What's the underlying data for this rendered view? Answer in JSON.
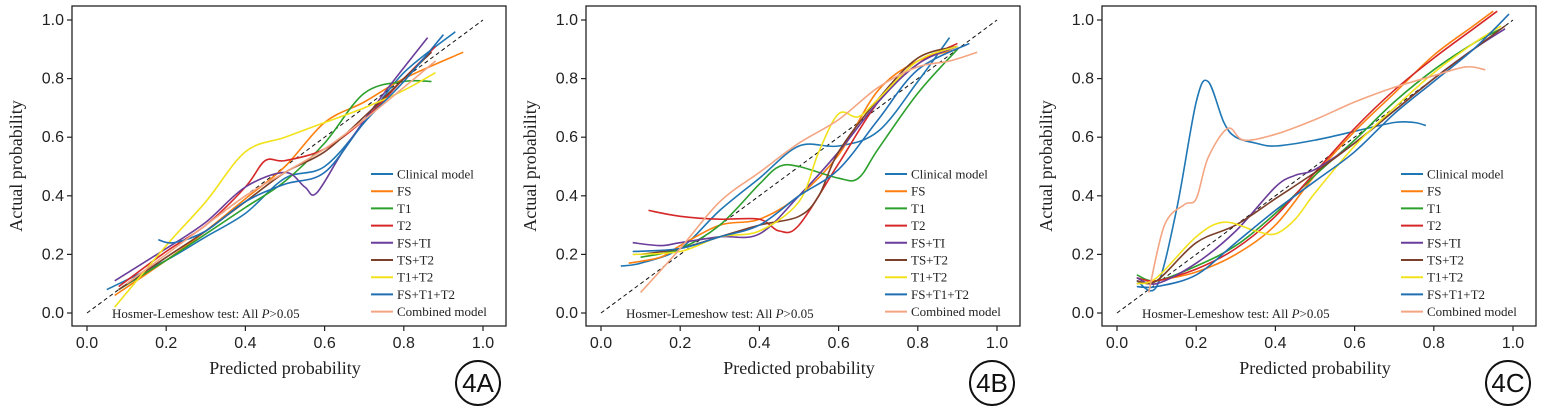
{
  "colors": {
    "Clinical model": "#1f77b4",
    "FS": "#ff7f0e",
    "T1": "#2ca02c",
    "T2": "#d62728",
    "FS+TI": "#6a3d9a",
    "TS+T2": "#7b3f2a",
    "T1+T2": "#f2e21b",
    "FS+T1+T2": "#1f6fb4",
    "Combined model": "#f4a582"
  },
  "chart_data": [
    {
      "type": "line",
      "panel_label": "4A",
      "xlabel": "Predicted probability",
      "ylabel": "Actual probability",
      "xlim": [
        0,
        1
      ],
      "ylim": [
        0,
        1
      ],
      "xticks": [
        "0.0",
        "0.2",
        "0.4",
        "0.6",
        "0.8",
        "1.0"
      ],
      "yticks": [
        "0.0",
        "0.2",
        "0.4",
        "0.6",
        "0.8",
        "1.0"
      ],
      "annotation": {
        "prefix": "Hosmer-Lemeshow test: All ",
        "italic": "P",
        "suffix": ">0.05"
      },
      "legend_placement": "bottom-right",
      "series": [
        {
          "name": "Clinical model",
          "x": [
            0.05,
            0.2,
            0.3,
            0.4,
            0.5,
            0.6,
            0.7,
            0.8,
            0.93
          ],
          "y": [
            0.08,
            0.18,
            0.26,
            0.34,
            0.46,
            0.5,
            0.65,
            0.82,
            0.96
          ]
        },
        {
          "name": "FS",
          "x": [
            0.07,
            0.2,
            0.3,
            0.4,
            0.5,
            0.6,
            0.7,
            0.8,
            0.95
          ],
          "y": [
            0.06,
            0.18,
            0.28,
            0.39,
            0.5,
            0.65,
            0.72,
            0.8,
            0.89
          ]
        },
        {
          "name": "T1",
          "x": [
            0.08,
            0.2,
            0.3,
            0.4,
            0.5,
            0.6,
            0.7,
            0.8,
            0.87
          ],
          "y": [
            0.08,
            0.18,
            0.27,
            0.36,
            0.45,
            0.58,
            0.75,
            0.79,
            0.79
          ]
        },
        {
          "name": "T2",
          "x": [
            0.08,
            0.2,
            0.3,
            0.4,
            0.45,
            0.5,
            0.6,
            0.7,
            0.8,
            0.88
          ],
          "y": [
            0.09,
            0.21,
            0.3,
            0.43,
            0.52,
            0.52,
            0.56,
            0.66,
            0.8,
            0.91
          ]
        },
        {
          "name": "FS+TI",
          "x": [
            0.07,
            0.2,
            0.3,
            0.4,
            0.5,
            0.55,
            0.58,
            0.65,
            0.75,
            0.86
          ],
          "y": [
            0.11,
            0.22,
            0.31,
            0.43,
            0.48,
            0.43,
            0.41,
            0.56,
            0.75,
            0.94
          ]
        },
        {
          "name": "TS+T2",
          "x": [
            0.08,
            0.2,
            0.3,
            0.4,
            0.5,
            0.6,
            0.7,
            0.8,
            0.87
          ],
          "y": [
            0.08,
            0.19,
            0.28,
            0.38,
            0.48,
            0.55,
            0.67,
            0.8,
            0.89
          ]
        },
        {
          "name": "T1+T2",
          "x": [
            0.07,
            0.2,
            0.3,
            0.4,
            0.5,
            0.6,
            0.7,
            0.8,
            0.88
          ],
          "y": [
            0.02,
            0.23,
            0.38,
            0.55,
            0.6,
            0.65,
            0.7,
            0.76,
            0.82
          ]
        },
        {
          "name": "FS+T1+T2",
          "x": [
            0.18,
            0.22,
            0.3,
            0.4,
            0.5,
            0.6,
            0.7,
            0.8,
            0.9
          ],
          "y": [
            0.25,
            0.24,
            0.28,
            0.38,
            0.44,
            0.48,
            0.65,
            0.79,
            0.95
          ]
        },
        {
          "name": "Combined model",
          "x": [
            0.1,
            0.2,
            0.3,
            0.4,
            0.5,
            0.6,
            0.7,
            0.8,
            0.88
          ],
          "y": [
            0.1,
            0.2,
            0.3,
            0.4,
            0.48,
            0.56,
            0.66,
            0.77,
            0.86
          ]
        }
      ]
    },
    {
      "type": "line",
      "panel_label": "4B",
      "xlabel": "Predicted probability",
      "ylabel": "Actual probability",
      "xlim": [
        0,
        1
      ],
      "ylim": [
        0,
        1
      ],
      "xticks": [
        "0.0",
        "0.2",
        "0.4",
        "0.6",
        "0.8",
        "1.0"
      ],
      "yticks": [
        "0.0",
        "0.2",
        "0.4",
        "0.6",
        "0.8",
        "1.0"
      ],
      "annotation": {
        "prefix": "Hosmer-Lemeshow test: All ",
        "italic": "P",
        "suffix": ">0.05"
      },
      "legend_placement": "bottom-right",
      "series": [
        {
          "name": "Clinical model",
          "x": [
            0.05,
            0.1,
            0.2,
            0.3,
            0.4,
            0.5,
            0.6,
            0.7,
            0.8,
            0.88
          ],
          "y": [
            0.16,
            0.17,
            0.22,
            0.35,
            0.46,
            0.57,
            0.57,
            0.62,
            0.79,
            0.94
          ]
        },
        {
          "name": "FS",
          "x": [
            0.07,
            0.15,
            0.2,
            0.3,
            0.4,
            0.5,
            0.6,
            0.7,
            0.8,
            0.9
          ],
          "y": [
            0.17,
            0.19,
            0.23,
            0.3,
            0.32,
            0.4,
            0.54,
            0.76,
            0.86,
            0.9
          ]
        },
        {
          "name": "T1",
          "x": [
            0.1,
            0.2,
            0.3,
            0.4,
            0.45,
            0.5,
            0.6,
            0.65,
            0.7,
            0.8,
            0.9
          ],
          "y": [
            0.19,
            0.22,
            0.3,
            0.44,
            0.5,
            0.5,
            0.46,
            0.46,
            0.56,
            0.75,
            0.9
          ]
        },
        {
          "name": "T2",
          "x": [
            0.12,
            0.2,
            0.3,
            0.4,
            0.45,
            0.5,
            0.6,
            0.7,
            0.8,
            0.9
          ],
          "y": [
            0.35,
            0.33,
            0.32,
            0.32,
            0.28,
            0.3,
            0.51,
            0.72,
            0.85,
            0.92
          ]
        },
        {
          "name": "FS+TI",
          "x": [
            0.08,
            0.15,
            0.2,
            0.3,
            0.4,
            0.5,
            0.6,
            0.7,
            0.8,
            0.9
          ],
          "y": [
            0.24,
            0.23,
            0.24,
            0.26,
            0.27,
            0.4,
            0.55,
            0.72,
            0.85,
            0.91
          ]
        },
        {
          "name": "TS+T2",
          "x": [
            0.1,
            0.2,
            0.3,
            0.4,
            0.5,
            0.55,
            0.6,
            0.7,
            0.8,
            0.9
          ],
          "y": [
            0.2,
            0.22,
            0.26,
            0.3,
            0.33,
            0.4,
            0.55,
            0.73,
            0.87,
            0.91
          ]
        },
        {
          "name": "T1+T2",
          "x": [
            0.08,
            0.2,
            0.3,
            0.4,
            0.5,
            0.55,
            0.6,
            0.65,
            0.7,
            0.8,
            0.9
          ],
          "y": [
            0.2,
            0.21,
            0.26,
            0.28,
            0.38,
            0.55,
            0.68,
            0.67,
            0.73,
            0.86,
            0.91
          ]
        },
        {
          "name": "FS+T1+T2",
          "x": [
            0.08,
            0.2,
            0.3,
            0.4,
            0.5,
            0.6,
            0.7,
            0.8,
            0.93
          ],
          "y": [
            0.21,
            0.22,
            0.26,
            0.3,
            0.4,
            0.49,
            0.66,
            0.83,
            0.92
          ]
        },
        {
          "name": "Combined model",
          "x": [
            0.1,
            0.2,
            0.3,
            0.4,
            0.5,
            0.6,
            0.7,
            0.8,
            0.88,
            0.95
          ],
          "y": [
            0.07,
            0.22,
            0.38,
            0.48,
            0.58,
            0.66,
            0.77,
            0.84,
            0.86,
            0.89
          ]
        }
      ]
    },
    {
      "type": "line",
      "panel_label": "4C",
      "xlabel": "Predicted probability",
      "ylabel": "Actual probability",
      "xlim": [
        0,
        1
      ],
      "ylim": [
        0,
        1
      ],
      "xticks": [
        "0.0",
        "0.2",
        "0.4",
        "0.6",
        "0.8",
        "1.0"
      ],
      "yticks": [
        "0.0",
        "0.2",
        "0.4",
        "0.6",
        "0.8",
        "1.0"
      ],
      "annotation": {
        "prefix": "Hosmer-Lemeshow test: All ",
        "italic": "P",
        "suffix": ">0.05"
      },
      "legend_placement": "bottom-right",
      "series": [
        {
          "name": "Clinical model",
          "x": [
            0.05,
            0.1,
            0.15,
            0.2,
            0.23,
            0.27,
            0.3,
            0.35,
            0.4,
            0.5,
            0.6,
            0.7,
            0.75,
            0.78
          ],
          "y": [
            0.11,
            0.09,
            0.35,
            0.72,
            0.79,
            0.65,
            0.6,
            0.58,
            0.57,
            0.59,
            0.62,
            0.65,
            0.65,
            0.64
          ]
        },
        {
          "name": "FS",
          "x": [
            0.05,
            0.1,
            0.2,
            0.3,
            0.4,
            0.5,
            0.6,
            0.7,
            0.8,
            0.9,
            0.95
          ],
          "y": [
            0.1,
            0.11,
            0.14,
            0.2,
            0.3,
            0.47,
            0.62,
            0.75,
            0.88,
            0.98,
            1.03
          ]
        },
        {
          "name": "T1",
          "x": [
            0.05,
            0.1,
            0.2,
            0.3,
            0.4,
            0.5,
            0.6,
            0.7,
            0.8,
            0.9,
            0.97
          ],
          "y": [
            0.13,
            0.11,
            0.16,
            0.23,
            0.34,
            0.47,
            0.59,
            0.72,
            0.83,
            0.92,
            0.97
          ]
        },
        {
          "name": "T2",
          "x": [
            0.05,
            0.1,
            0.2,
            0.3,
            0.4,
            0.5,
            0.6,
            0.7,
            0.8,
            0.9,
            0.96
          ],
          "y": [
            0.12,
            0.11,
            0.15,
            0.22,
            0.33,
            0.48,
            0.63,
            0.76,
            0.87,
            0.97,
            1.03
          ]
        },
        {
          "name": "FS+TI",
          "x": [
            0.05,
            0.1,
            0.2,
            0.3,
            0.4,
            0.45,
            0.5,
            0.6,
            0.7,
            0.8,
            0.9,
            0.98
          ],
          "y": [
            0.12,
            0.1,
            0.17,
            0.28,
            0.43,
            0.47,
            0.49,
            0.58,
            0.69,
            0.8,
            0.9,
            0.97
          ]
        },
        {
          "name": "TS+T2",
          "x": [
            0.05,
            0.1,
            0.2,
            0.3,
            0.4,
            0.5,
            0.6,
            0.7,
            0.8,
            0.9,
            0.98
          ],
          "y": [
            0.11,
            0.11,
            0.24,
            0.3,
            0.39,
            0.48,
            0.58,
            0.69,
            0.8,
            0.9,
            0.98
          ]
        },
        {
          "name": "T1+T2",
          "x": [
            0.05,
            0.1,
            0.2,
            0.27,
            0.35,
            0.4,
            0.45,
            0.5,
            0.6,
            0.7,
            0.8,
            0.9,
            0.97
          ],
          "y": [
            0.1,
            0.12,
            0.26,
            0.31,
            0.28,
            0.27,
            0.32,
            0.41,
            0.57,
            0.7,
            0.82,
            0.92,
            0.98
          ]
        },
        {
          "name": "FS+T1+T2",
          "x": [
            0.05,
            0.1,
            0.2,
            0.3,
            0.4,
            0.5,
            0.6,
            0.7,
            0.8,
            0.9,
            0.99
          ],
          "y": [
            0.09,
            0.09,
            0.13,
            0.24,
            0.35,
            0.45,
            0.55,
            0.68,
            0.79,
            0.9,
            1.02
          ]
        },
        {
          "name": "Combined model",
          "x": [
            0.08,
            0.12,
            0.17,
            0.2,
            0.23,
            0.28,
            0.32,
            0.4,
            0.5,
            0.6,
            0.7,
            0.8,
            0.88,
            0.93
          ],
          "y": [
            0.07,
            0.3,
            0.37,
            0.39,
            0.53,
            0.63,
            0.59,
            0.61,
            0.66,
            0.72,
            0.77,
            0.81,
            0.84,
            0.83
          ]
        }
      ]
    }
  ]
}
